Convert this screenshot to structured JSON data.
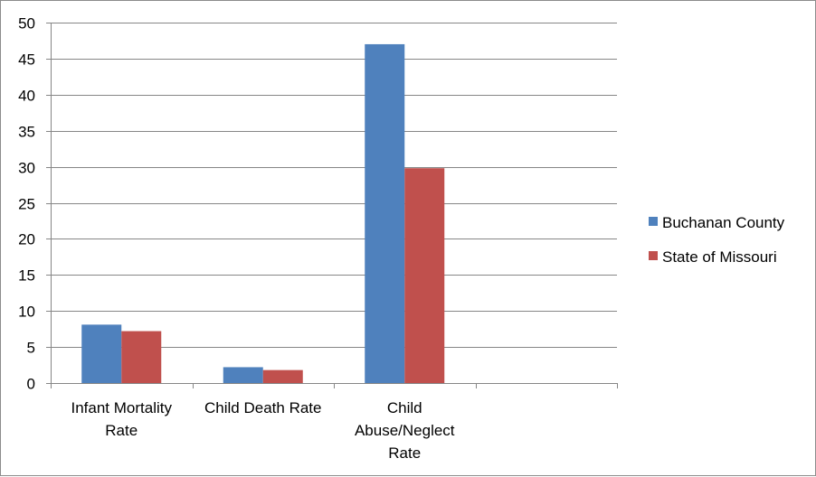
{
  "chart_data": {
    "type": "bar",
    "categories": [
      [
        "Infant Mortality",
        "Rate"
      ],
      [
        "Child Death Rate"
      ],
      [
        "Child",
        "Abuse/Neglect",
        "Rate"
      ],
      [
        ""
      ]
    ],
    "series": [
      {
        "name": "Buchanan County",
        "color": "#4f81bd",
        "values": [
          8.1,
          2.2,
          47.0,
          null
        ]
      },
      {
        "name": "State of Missouri",
        "color": "#c0504d",
        "values": [
          7.2,
          1.8,
          29.8,
          null
        ]
      }
    ],
    "ylim": [
      0,
      50
    ],
    "ytick_step": 5,
    "grid": true,
    "legend": "right",
    "title": "",
    "xlabel": "",
    "ylabel": ""
  }
}
